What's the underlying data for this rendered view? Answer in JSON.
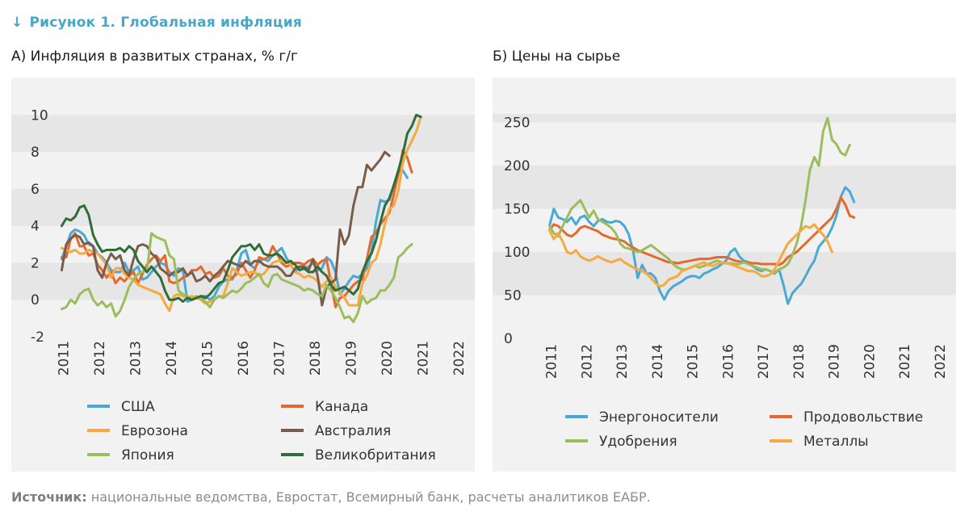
{
  "figure": {
    "arrow": "↓",
    "title": "Рисунок 1. Глобальная инфляция"
  },
  "source": {
    "label": "Источник:",
    "text": " национальные ведомства, Евростат, Всемирный банк, расчеты аналитиков ЕАБР."
  },
  "chart_data": [
    {
      "type": "line",
      "title": "А) Инфляция в развитых странах, % г/г",
      "x_start": 2011.0,
      "x_step_years": 0.125,
      "xticks": [
        "2011",
        "2012",
        "2013",
        "2014",
        "2015",
        "2016",
        "2017",
        "2018",
        "2019",
        "2020",
        "2021",
        "2022"
      ],
      "xlim": [
        2010.9,
        2022.1
      ],
      "yticks": [
        -2,
        0,
        2,
        4,
        6,
        8,
        10
      ],
      "ylim": [
        -2,
        10.5
      ],
      "grid_bands": true,
      "legend_position": "bottom",
      "legend_columns": 2,
      "series": [
        {
          "name": "США",
          "color": "#49a8d4",
          "values": [
            2.2,
            2.9,
            3.6,
            3.8,
            3.7,
            3.5,
            3.0,
            2.9,
            2.5,
            2.3,
            2.0,
            1.6,
            1.5,
            1.5,
            2.0,
            1.5,
            1.6,
            1.8,
            1.1,
            1.2,
            1.5,
            1.8,
            2.0,
            1.9,
            1.5,
            1.3,
            1.7,
            1.6,
            -0.1,
            0.0,
            0.1,
            0.2,
            0.2,
            0.0,
            0.2,
            0.7,
            1.0,
            1.1,
            1.1,
            1.6,
            2.5,
            2.7,
            1.9,
            1.7,
            2.1,
            2.2,
            2.1,
            2.4,
            2.6,
            2.8,
            2.3,
            1.9,
            1.5,
            1.8,
            1.7,
            1.8,
            2.0,
            1.6,
            1.7,
            2.3,
            2.1,
            1.5,
            0.3,
            0.6,
            1.0,
            1.3,
            1.2,
            1.4,
            1.7,
            2.6,
            4.2,
            5.4,
            5.3,
            5.4,
            6.2,
            7.0,
            7.0,
            6.6
          ]
        },
        {
          "name": "Канада",
          "color": "#e36a2e",
          "values": [
            2.3,
            2.3,
            3.3,
            3.6,
            2.9,
            2.9,
            2.4,
            2.5,
            1.9,
            1.6,
            1.2,
            1.5,
            0.9,
            1.2,
            1.0,
            1.3,
            1.5,
            0.9,
            1.4,
            1.9,
            2.2,
            2.4,
            2.1,
            2.4,
            1.0,
            0.9,
            1.0,
            1.2,
            1.3,
            1.6,
            1.6,
            1.8,
            1.4,
            1.5,
            1.2,
            1.3,
            1.7,
            1.3,
            1.2,
            1.4,
            2.0,
            1.6,
            1.2,
            1.6,
            2.3,
            2.2,
            2.3,
            2.9,
            2.5,
            2.0,
            1.8,
            1.9,
            2.0,
            2.0,
            1.9,
            2.1,
            2.2,
            1.9,
            2.1,
            2.2,
            0.9,
            -0.4,
            0.1,
            0.2,
            0.5,
            0.8,
            1.0,
            1.1,
            2.2,
            3.4,
            3.6,
            4.1,
            4.4,
            4.7,
            5.7,
            6.8,
            8.1,
            7.7,
            6.9
          ]
        },
        {
          "name": "Еврозона",
          "color": "#f5a940",
          "values": [
            2.8,
            2.7,
            2.6,
            2.7,
            2.5,
            2.5,
            2.7,
            2.6,
            2.5,
            2.2,
            1.9,
            1.2,
            1.7,
            1.7,
            1.4,
            1.2,
            1.1,
            0.8,
            0.7,
            0.6,
            0.5,
            0.4,
            0.3,
            -0.2,
            -0.6,
            0.2,
            0.3,
            0.2,
            0.1,
            0.2,
            0.1,
            0.0,
            -0.2,
            -0.1,
            0.0,
            0.2,
            0.2,
            0.9,
            1.7,
            1.5,
            1.3,
            1.4,
            1.5,
            1.5,
            1.3,
            1.4,
            1.7,
            2.0,
            2.1,
            2.1,
            2.1,
            1.9,
            1.5,
            1.4,
            1.2,
            1.3,
            1.2,
            1.0,
            0.7,
            1.0,
            1.2,
            0.7,
            0.4,
            0.1,
            -0.3,
            -0.3,
            -0.3,
            0.9,
            1.3,
            2.0,
            2.2,
            3.0,
            4.1,
            4.9,
            5.1,
            5.9,
            7.4,
            8.1,
            8.6,
            9.1,
            9.9
          ]
        },
        {
          "name": "Австралия",
          "color": "#7a5c4a",
          "values": [
            1.6,
            3.0,
            3.3,
            3.5,
            3.4,
            3.0,
            3.1,
            2.9,
            1.6,
            1.2,
            2.0,
            2.5,
            2.2,
            2.4,
            1.6,
            1.3,
            2.2,
            2.9,
            3.0,
            2.9,
            2.5,
            2.3,
            1.7,
            1.5,
            1.3,
            1.5,
            1.5,
            1.7,
            1.3,
            1.5,
            1.0,
            1.1,
            1.3,
            1.0,
            1.3,
            1.5,
            1.8,
            2.1,
            2.0,
            1.9,
            1.8,
            2.1,
            1.9,
            2.1,
            2.1,
            1.9,
            1.8,
            1.8,
            1.8,
            1.6,
            1.3,
            1.3,
            1.7,
            1.8,
            1.8,
            1.6,
            2.2,
            1.3,
            -0.3,
            0.7,
            0.9,
            1.1,
            3.8,
            3.0,
            3.5,
            5.1,
            6.1,
            6.1,
            7.3,
            7.0,
            7.3,
            7.6,
            8.0,
            7.8
          ]
        },
        {
          "name": "Япония",
          "color": "#9bbd5c",
          "values": [
            -0.5,
            -0.4,
            0.0,
            -0.2,
            0.3,
            0.5,
            0.6,
            0.0,
            -0.3,
            -0.1,
            -0.4,
            -0.2,
            -0.9,
            -0.6,
            0.0,
            0.7,
            1.1,
            1.4,
            1.5,
            1.6,
            3.6,
            3.4,
            3.3,
            3.2,
            2.4,
            2.2,
            0.5,
            0.3,
            0.2,
            0.0,
            0.2,
            0.1,
            -0.1,
            -0.4,
            0.0,
            0.2,
            0.1,
            0.3,
            0.5,
            0.4,
            0.6,
            0.9,
            1.0,
            1.2,
            1.4,
            0.9,
            0.7,
            1.3,
            1.4,
            1.1,
            1.0,
            0.9,
            0.8,
            0.7,
            0.5,
            0.6,
            0.5,
            0.3,
            0.2,
            0.8,
            0.5,
            0.1,
            -0.4,
            -1.0,
            -0.9,
            -1.2,
            -0.7,
            0.2,
            -0.2,
            0.0,
            0.1,
            0.5,
            0.5,
            0.8,
            1.2,
            2.3,
            2.5,
            2.8,
            3.0
          ]
        },
        {
          "name": "Великобритания",
          "color": "#2f6e38",
          "values": [
            4.0,
            4.4,
            4.3,
            4.5,
            5.0,
            5.1,
            4.6,
            3.5,
            3.0,
            2.6,
            2.7,
            2.7,
            2.7,
            2.8,
            2.6,
            2.9,
            2.7,
            2.1,
            1.8,
            1.5,
            1.8,
            1.5,
            1.2,
            0.5,
            0.0,
            0.0,
            0.1,
            -0.1,
            0.1,
            0.0,
            0.1,
            0.2,
            0.1,
            0.3,
            0.6,
            0.9,
            1.0,
            1.6,
            2.3,
            2.6,
            2.9,
            2.9,
            3.0,
            2.7,
            3.0,
            2.5,
            2.4,
            2.4,
            2.5,
            2.3,
            2.0,
            2.1,
            1.9,
            1.6,
            1.7,
            1.5,
            1.5,
            1.8,
            1.5,
            1.3,
            0.8,
            0.5,
            0.6,
            0.7,
            0.5,
            0.3,
            0.6,
            1.5,
            2.1,
            2.5,
            3.2,
            4.2,
            5.1,
            5.5,
            6.2,
            7.0,
            7.9,
            9.0,
            9.4,
            10.0,
            9.9
          ]
        }
      ]
    },
    {
      "type": "line",
      "title": "Б) Цены на сырье",
      "x_start": 2011.0,
      "x_step_years": 0.125,
      "xticks": [
        "2011",
        "2012",
        "2013",
        "2014",
        "2015",
        "2016",
        "2017",
        "2018",
        "2019",
        "2020",
        "2021",
        "2022"
      ],
      "xlim": [
        2010.9,
        2022.1
      ],
      "yticks": [
        0,
        50,
        100,
        150,
        200,
        250
      ],
      "ylim": [
        0,
        260
      ],
      "grid_bands": true,
      "legend_position": "bottom",
      "legend_columns": 2,
      "series": [
        {
          "name": "Энергоносители",
          "color": "#49a8d4",
          "values": [
            130,
            150,
            140,
            138,
            135,
            140,
            132,
            140,
            142,
            135,
            130,
            136,
            138,
            135,
            134,
            136,
            135,
            130,
            120,
            100,
            70,
            85,
            75,
            75,
            70,
            55,
            45,
            55,
            60,
            63,
            66,
            70,
            72,
            72,
            70,
            75,
            77,
            80,
            82,
            86,
            90,
            100,
            104,
            95,
            90,
            88,
            84,
            80,
            78,
            80,
            78,
            75,
            80,
            62,
            40,
            52,
            58,
            63,
            72,
            82,
            90,
            106,
            112,
            118,
            128,
            142,
            164,
            175,
            170,
            158
          ]
        },
        {
          "name": "Продовольствие",
          "color": "#e36a2e",
          "values": [
            125,
            132,
            130,
            125,
            120,
            118,
            122,
            128,
            130,
            128,
            126,
            124,
            120,
            118,
            116,
            115,
            114,
            112,
            108,
            105,
            102,
            100,
            98,
            96,
            94,
            92,
            90,
            88,
            88,
            87,
            88,
            89,
            90,
            91,
            92,
            92,
            92,
            93,
            94,
            94,
            94,
            92,
            90,
            89,
            88,
            88,
            87,
            87,
            86,
            86,
            86,
            86,
            85,
            88,
            94,
            97,
            100,
            105,
            110,
            115,
            120,
            125,
            130,
            135,
            140,
            150,
            163,
            155,
            142,
            140
          ]
        },
        {
          "name": "Удобрения",
          "color": "#9bbd5c",
          "values": [
            130,
            122,
            118,
            130,
            140,
            150,
            155,
            160,
            150,
            140,
            148,
            138,
            135,
            132,
            128,
            122,
            110,
            105,
            104,
            102,
            100,
            102,
            105,
            108,
            104,
            100,
            96,
            92,
            86,
            82,
            80,
            80,
            82,
            84,
            82,
            84,
            86,
            88,
            90,
            88,
            87,
            87,
            86,
            86,
            88,
            86,
            84,
            82,
            80,
            80,
            78,
            76,
            80,
            82,
            86,
            96,
            110,
            130,
            160,
            195,
            210,
            200,
            240,
            255,
            230,
            225,
            215,
            212,
            224
          ]
        },
        {
          "name": "Металлы",
          "color": "#f5a940",
          "values": [
            125,
            115,
            122,
            112,
            100,
            98,
            102,
            95,
            92,
            90,
            92,
            95,
            92,
            90,
            88,
            90,
            92,
            88,
            85,
            82,
            80,
            78,
            75,
            70,
            64,
            60,
            62,
            68,
            70,
            72,
            78,
            80,
            82,
            84,
            86,
            88,
            85,
            84,
            86,
            88,
            87,
            86,
            84,
            82,
            80,
            78,
            78,
            76,
            72,
            72,
            74,
            80,
            90,
            100,
            110,
            115,
            120,
            125,
            130,
            128,
            132,
            125,
            120,
            112,
            100
          ]
        }
      ]
    }
  ]
}
